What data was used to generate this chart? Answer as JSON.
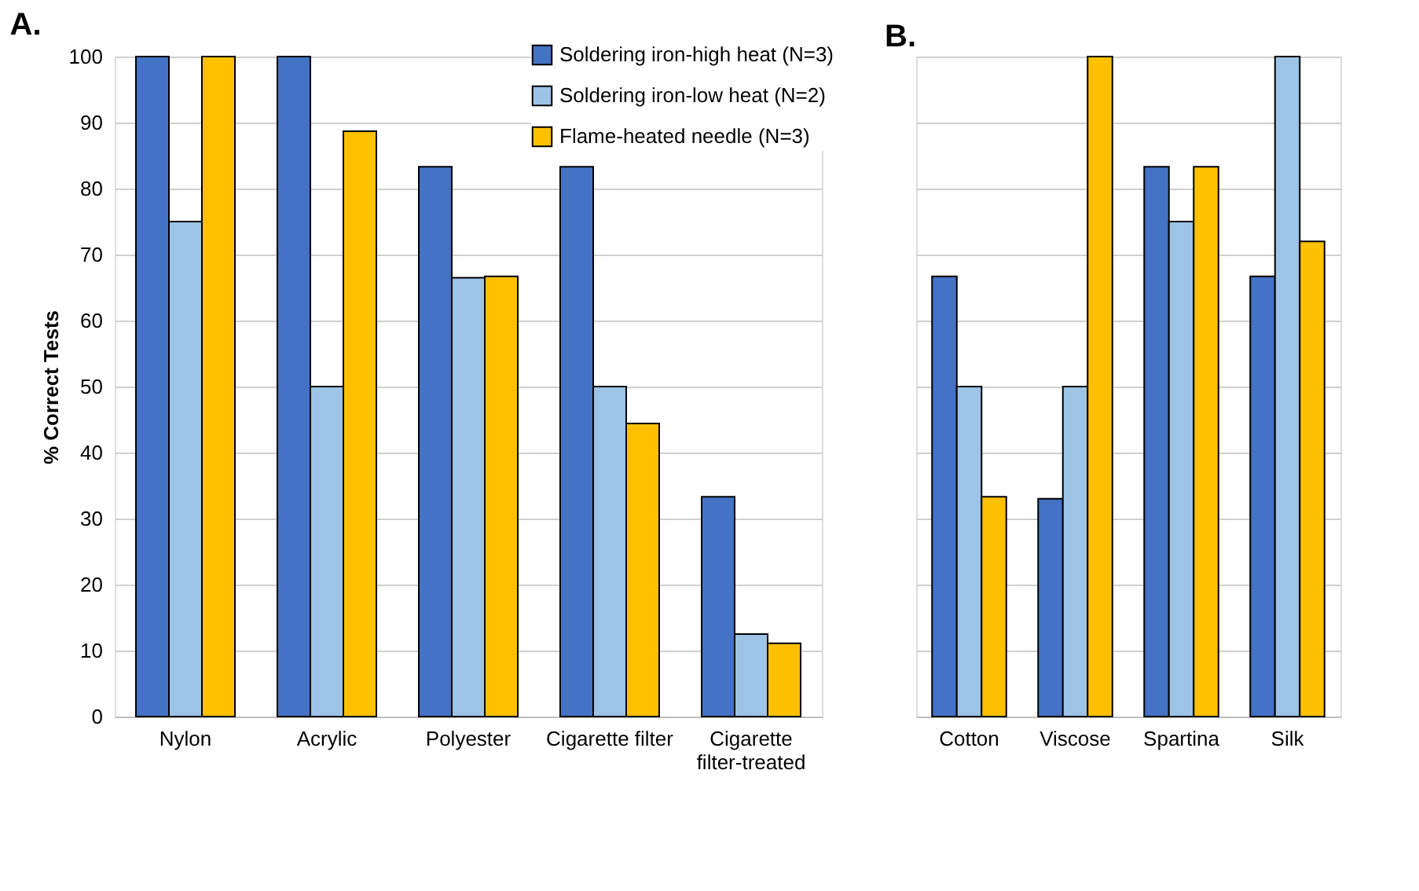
{
  "chart_data": [
    {
      "type": "bar",
      "title": "A.",
      "ylabel": "% Correct Tests",
      "categories": [
        "Nylon",
        "Acrylic",
        "Polyester",
        "Cigarette filter",
        "Cigarette filter-treated"
      ],
      "series": [
        {
          "name": "Soldering iron-high heat (N=3)",
          "color": "#4472c4",
          "values": [
            100,
            100,
            83.3,
            83.3,
            33.3
          ]
        },
        {
          "name": "Soldering iron-low heat (N=2)",
          "color": "#9dc3e6",
          "values": [
            75,
            50,
            66.5,
            50,
            12.5
          ]
        },
        {
          "name": "Flame-heated needle (N=3)",
          "color": "#ffc000",
          "values": [
            100,
            88.7,
            66.7,
            44.4,
            11.1
          ]
        }
      ],
      "ylim": [
        0,
        100
      ],
      "yticks": [
        0,
        10,
        20,
        30,
        40,
        50,
        60,
        70,
        80,
        90,
        100
      ],
      "grid": "y",
      "legend": "top right"
    },
    {
      "type": "bar",
      "title": "B.",
      "categories": [
        "Cotton",
        "Viscose",
        "Spartina",
        "Silk"
      ],
      "series": [
        {
          "color": "#4472c4",
          "values": [
            66.7,
            33,
            83.3,
            66.7
          ]
        },
        {
          "color": "#9dc3e6",
          "values": [
            50,
            50,
            75,
            100
          ]
        },
        {
          "color": "#ffc000",
          "values": [
            33.3,
            100,
            83.3,
            72
          ]
        }
      ],
      "ylim": [
        0,
        100
      ],
      "yticks": [
        0,
        10,
        20,
        30,
        40,
        50,
        60,
        70,
        80,
        90,
        100
      ],
      "grid": "y",
      "tick_labels": "x"
    }
  ]
}
